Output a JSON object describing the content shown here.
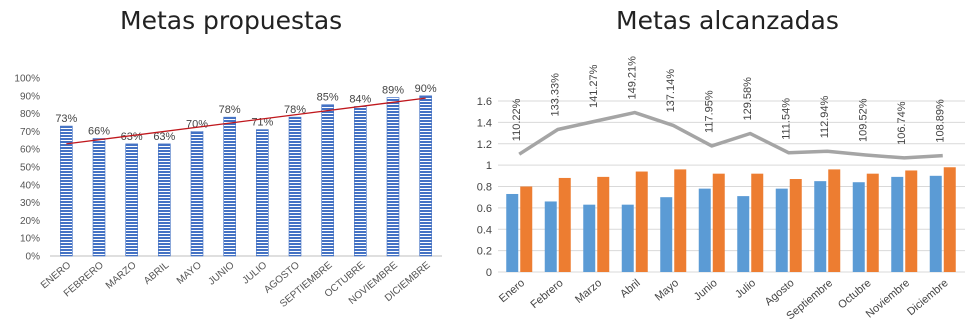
{
  "chart_data": [
    {
      "type": "bar",
      "title": "Metas propuestas",
      "categories": [
        "ENERO",
        "FEBRERO",
        "MARZO",
        "ABRIL",
        "MAYO",
        "JUNIO",
        "JULIO",
        "AGOSTO",
        "SEPTIEMBRE",
        "OCTUBRE",
        "NOVIEMBRE",
        "DICIEMBRE"
      ],
      "values": [
        73,
        66,
        63,
        63,
        70,
        78,
        71,
        78,
        85,
        84,
        89,
        90
      ],
      "value_labels": [
        "73%",
        "66%",
        "63%",
        "63%",
        "70%",
        "78%",
        "71%",
        "78%",
        "85%",
        "84%",
        "89%",
        "90%"
      ],
      "y_ticks": [
        "0%",
        "10%",
        "20%",
        "30%",
        "40%",
        "50%",
        "60%",
        "70%",
        "80%",
        "90%",
        "100%"
      ],
      "ylim": [
        0,
        100
      ],
      "trendline": true,
      "bar_color": "#4472c4",
      "trend_color": "#c0181d",
      "grid": false
    },
    {
      "type": "bar+line",
      "title": "Metas alcanzadas",
      "categories": [
        "Enero",
        "Febrero",
        "Marzo",
        "Abril",
        "Mayo",
        "Junio",
        "Julio",
        "Agosto",
        "Septiembre",
        "Octubre",
        "Noviembre",
        "Diciembre"
      ],
      "series": [
        {
          "kind": "bar",
          "color": "#5b9bd5",
          "values": [
            0.73,
            0.66,
            0.63,
            0.63,
            0.7,
            0.78,
            0.71,
            0.78,
            0.85,
            0.84,
            0.89,
            0.9
          ]
        },
        {
          "kind": "bar",
          "color": "#ed7d31",
          "values": [
            0.8,
            0.88,
            0.89,
            0.94,
            0.96,
            0.92,
            0.92,
            0.87,
            0.96,
            0.92,
            0.95,
            0.98
          ]
        },
        {
          "kind": "line",
          "color": "#a5a5a5",
          "values": [
            1.1022,
            1.3333,
            1.4127,
            1.4921,
            1.3714,
            1.1795,
            1.2958,
            1.1154,
            1.1294,
            1.0952,
            1.0674,
            1.0889
          ]
        }
      ],
      "line_labels": [
        "110.22%",
        "133.33%",
        "141.27%",
        "149.21%",
        "137.14%",
        "117.95%",
        "129.58%",
        "111.54%",
        "112.94%",
        "109.52%",
        "106.74%",
        "108.89%"
      ],
      "y_ticks": [
        "0",
        "0.2",
        "0.4",
        "0.6",
        "0.8",
        "1",
        "1.2",
        "1.4",
        "1.6"
      ],
      "ylim": [
        0,
        1.6
      ],
      "grid": true,
      "grid_color": "#d9d9d9"
    }
  ]
}
